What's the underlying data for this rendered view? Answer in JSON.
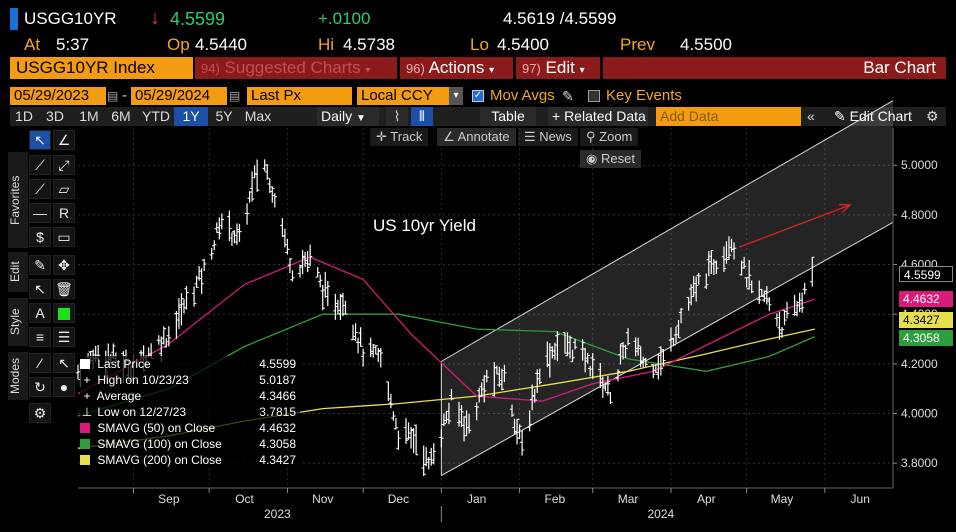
{
  "header": {
    "ticker": "USGG10YR",
    "arrow": "↓",
    "last": "4.5599",
    "change": "+.0100",
    "bid_ask": "4.5619 /4.5599",
    "at_label": "At",
    "time": "5:37",
    "op_label": "Op",
    "open": "4.5440",
    "hi_label": "Hi",
    "high": "4.5738",
    "lo_label": "Lo",
    "low": "4.5400",
    "prev_label": "Prev",
    "prev": "4.5500"
  },
  "menubar": {
    "security": "USGG10YR Index",
    "suggested_num": "94)",
    "suggested": "Suggested Charts",
    "actions_num": "96)",
    "actions": "Actions",
    "edit_num": "97)",
    "edit": "Edit",
    "chart_type": "Bar Chart"
  },
  "controls": {
    "start_date": "05/29/2023",
    "end_date": "05/29/2024",
    "field": "Last Px",
    "currency": "Local CCY",
    "mov_avgs": "Mov Avgs",
    "key_events": "Key Events"
  },
  "ranges": {
    "items": [
      "1D",
      "3D",
      "1M",
      "6M",
      "YTD",
      "1Y",
      "5Y",
      "Max"
    ],
    "selected": "1Y",
    "frequency": "Daily",
    "table": "Table",
    "related": "+ Related Data",
    "add_data_placeholder": "Add Data",
    "edit_chart": "Edit Chart"
  },
  "tools": {
    "track": "Track",
    "annotate": "Annotate",
    "news": "News",
    "zoom": "Zoom",
    "reset": "Reset"
  },
  "side_tabs": {
    "favorites": "Favorites",
    "edit": "Edit",
    "style": "Style",
    "modes": "Modes"
  },
  "legend": {
    "last_price_label": "Last Price",
    "last_price": "4.5599",
    "high_label": "High on 10/23/23",
    "high": "5.0187",
    "average_label": "Average",
    "average": "4.3466",
    "low_label": "Low on 12/27/23",
    "low": "3.7815",
    "sma50_label": "SMAVG (50)  on Close",
    "sma50": "4.4632",
    "sma100_label": "SMAVG (100)  on Close",
    "sma100": "4.3058",
    "sma200_label": "SMAVG (200)  on Close",
    "sma200": "4.3427"
  },
  "colors": {
    "sma50": "#d81b7a",
    "sma100": "#2e9e3e",
    "sma200": "#e8e04a",
    "price_bars": "#ffffff",
    "accent_orange": "#f39c12",
    "trend_arrow": "#d22"
  },
  "chart_data": {
    "type": "line",
    "title": "US 10yr Yield",
    "ylim": [
      3.7,
      5.15
    ],
    "yticks": [
      "5.0000",
      "4.8000",
      "4.6000",
      "4.4000",
      "4.2000",
      "4.0000",
      "3.8000"
    ],
    "ytick_values": [
      5.0,
      4.8,
      4.6,
      4.4,
      4.2,
      4.0,
      3.8
    ],
    "x_months": [
      "Sep",
      "Oct",
      "Nov",
      "Dec",
      "Jan",
      "Feb",
      "Mar",
      "Apr",
      "May",
      "Jun"
    ],
    "x_years": [
      "2023",
      "2024"
    ],
    "x_start": "2023-08-10",
    "x_end": "2024-06-28",
    "price_series": {
      "name": "Last Price",
      "dates": [
        "2023-08-10",
        "2023-08-18",
        "2023-08-25",
        "2023-09-01",
        "2023-09-08",
        "2023-09-15",
        "2023-09-22",
        "2023-09-29",
        "2023-10-06",
        "2023-10-13",
        "2023-10-19",
        "2023-10-23",
        "2023-10-27",
        "2023-11-03",
        "2023-11-10",
        "2023-11-17",
        "2023-11-24",
        "2023-12-01",
        "2023-12-08",
        "2023-12-15",
        "2023-12-22",
        "2023-12-27",
        "2024-01-05",
        "2024-01-12",
        "2024-01-19",
        "2024-01-26",
        "2024-02-02",
        "2024-02-09",
        "2024-02-16",
        "2024-02-23",
        "2024-03-01",
        "2024-03-08",
        "2024-03-15",
        "2024-03-22",
        "2024-03-29",
        "2024-04-05",
        "2024-04-12",
        "2024-04-19",
        "2024-04-25",
        "2024-05-03",
        "2024-05-10",
        "2024-05-15",
        "2024-05-21",
        "2024-05-28"
      ],
      "values": [
        4.17,
        4.25,
        4.22,
        4.18,
        4.26,
        4.32,
        4.45,
        4.58,
        4.78,
        4.7,
        4.95,
        5.0,
        4.88,
        4.58,
        4.63,
        4.45,
        4.45,
        4.25,
        4.22,
        3.92,
        3.9,
        3.79,
        4.04,
        3.95,
        4.14,
        4.15,
        3.86,
        4.18,
        4.28,
        4.26,
        4.19,
        4.08,
        4.3,
        4.2,
        4.21,
        4.39,
        4.52,
        4.62,
        4.7,
        4.5,
        4.45,
        4.35,
        4.43,
        4.56
      ]
    },
    "sma50": {
      "name": "SMAVG (50)",
      "dates": [
        "2023-08-10",
        "2023-09-15",
        "2023-10-15",
        "2023-11-10",
        "2023-12-01",
        "2023-12-20",
        "2024-01-15",
        "2024-02-10",
        "2024-03-01",
        "2024-03-25",
        "2024-04-20",
        "2024-05-10",
        "2024-05-28"
      ],
      "values": [
        4.08,
        4.28,
        4.52,
        4.63,
        4.54,
        4.32,
        4.07,
        4.05,
        4.12,
        4.17,
        4.3,
        4.4,
        4.46
      ]
    },
    "sma100": {
      "name": "SMAVG (100)",
      "dates": [
        "2023-08-10",
        "2023-09-15",
        "2023-10-15",
        "2023-11-15",
        "2023-12-15",
        "2024-01-15",
        "2024-02-15",
        "2024-03-15",
        "2024-04-15",
        "2024-05-10",
        "2024-05-28"
      ],
      "values": [
        3.99,
        4.1,
        4.27,
        4.4,
        4.4,
        4.34,
        4.33,
        4.22,
        4.17,
        4.23,
        4.31
      ]
    },
    "sma200": {
      "name": "SMAVG (200)",
      "dates": [
        "2023-08-10",
        "2023-09-15",
        "2023-10-15",
        "2023-11-15",
        "2023-12-15",
        "2024-01-15",
        "2024-02-15",
        "2024-03-15",
        "2024-04-15",
        "2024-05-10",
        "2024-05-28"
      ],
      "values": [
        3.86,
        3.91,
        3.97,
        4.02,
        4.04,
        4.07,
        4.12,
        4.17,
        4.24,
        4.3,
        4.34
      ]
    },
    "badges": [
      {
        "value": "4.5599",
        "level": 4.56,
        "bg": "#000000",
        "fg": "#ffffff"
      },
      {
        "value": "4.4632",
        "level": 4.463,
        "bg": "#d81b7a",
        "fg": "#ffffff"
      },
      {
        "value": "4.3427",
        "level": 4.375,
        "bg": "#e8e04a",
        "fg": "#000000"
      },
      {
        "value": "4.3058",
        "level": 4.306,
        "bg": "#2e9e3e",
        "fg": "#ffffff"
      }
    ],
    "channel": {
      "lower": [
        {
          "date": "2024-01-01",
          "y": 3.75
        },
        {
          "date": "2024-06-28",
          "y": 4.77
        }
      ],
      "upper": [
        {
          "date": "2024-01-01",
          "y": 4.21
        },
        {
          "date": "2024-06-28",
          "y": 5.26
        }
      ]
    },
    "trend_arrow": [
      {
        "date": "2024-04-28",
        "y": 4.67
      },
      {
        "date": "2024-06-11",
        "y": 4.84
      }
    ]
  }
}
